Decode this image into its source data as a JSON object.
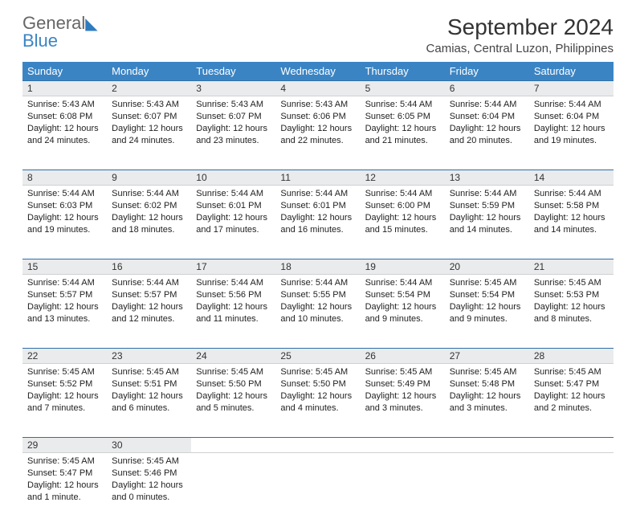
{
  "brand": {
    "part1": "General",
    "part2": "Blue"
  },
  "title": "September 2024",
  "location": "Camias, Central Luzon, Philippines",
  "colors": {
    "header_bg": "#3b84c4",
    "header_text": "#ffffff",
    "daynum_bg": "#e9ebec",
    "row_border": "#2f6fa8",
    "body_text": "#222222",
    "logo_blue": "#3b84c4",
    "logo_gray": "#666666"
  },
  "typography": {
    "title_fontsize": 28,
    "location_fontsize": 15,
    "dayheader_fontsize": 13,
    "daynum_fontsize": 12,
    "cell_fontsize": 11
  },
  "day_headers": [
    "Sunday",
    "Monday",
    "Tuesday",
    "Wednesday",
    "Thursday",
    "Friday",
    "Saturday"
  ],
  "weeks": [
    [
      {
        "day": "1",
        "sunrise": "5:43 AM",
        "sunset": "6:08 PM",
        "daylight": "12 hours and 24 minutes."
      },
      {
        "day": "2",
        "sunrise": "5:43 AM",
        "sunset": "6:07 PM",
        "daylight": "12 hours and 24 minutes."
      },
      {
        "day": "3",
        "sunrise": "5:43 AM",
        "sunset": "6:07 PM",
        "daylight": "12 hours and 23 minutes."
      },
      {
        "day": "4",
        "sunrise": "5:43 AM",
        "sunset": "6:06 PM",
        "daylight": "12 hours and 22 minutes."
      },
      {
        "day": "5",
        "sunrise": "5:44 AM",
        "sunset": "6:05 PM",
        "daylight": "12 hours and 21 minutes."
      },
      {
        "day": "6",
        "sunrise": "5:44 AM",
        "sunset": "6:04 PM",
        "daylight": "12 hours and 20 minutes."
      },
      {
        "day": "7",
        "sunrise": "5:44 AM",
        "sunset": "6:04 PM",
        "daylight": "12 hours and 19 minutes."
      }
    ],
    [
      {
        "day": "8",
        "sunrise": "5:44 AM",
        "sunset": "6:03 PM",
        "daylight": "12 hours and 19 minutes."
      },
      {
        "day": "9",
        "sunrise": "5:44 AM",
        "sunset": "6:02 PM",
        "daylight": "12 hours and 18 minutes."
      },
      {
        "day": "10",
        "sunrise": "5:44 AM",
        "sunset": "6:01 PM",
        "daylight": "12 hours and 17 minutes."
      },
      {
        "day": "11",
        "sunrise": "5:44 AM",
        "sunset": "6:01 PM",
        "daylight": "12 hours and 16 minutes."
      },
      {
        "day": "12",
        "sunrise": "5:44 AM",
        "sunset": "6:00 PM",
        "daylight": "12 hours and 15 minutes."
      },
      {
        "day": "13",
        "sunrise": "5:44 AM",
        "sunset": "5:59 PM",
        "daylight": "12 hours and 14 minutes."
      },
      {
        "day": "14",
        "sunrise": "5:44 AM",
        "sunset": "5:58 PM",
        "daylight": "12 hours and 14 minutes."
      }
    ],
    [
      {
        "day": "15",
        "sunrise": "5:44 AM",
        "sunset": "5:57 PM",
        "daylight": "12 hours and 13 minutes."
      },
      {
        "day": "16",
        "sunrise": "5:44 AM",
        "sunset": "5:57 PM",
        "daylight": "12 hours and 12 minutes."
      },
      {
        "day": "17",
        "sunrise": "5:44 AM",
        "sunset": "5:56 PM",
        "daylight": "12 hours and 11 minutes."
      },
      {
        "day": "18",
        "sunrise": "5:44 AM",
        "sunset": "5:55 PM",
        "daylight": "12 hours and 10 minutes."
      },
      {
        "day": "19",
        "sunrise": "5:44 AM",
        "sunset": "5:54 PM",
        "daylight": "12 hours and 9 minutes."
      },
      {
        "day": "20",
        "sunrise": "5:45 AM",
        "sunset": "5:54 PM",
        "daylight": "12 hours and 9 minutes."
      },
      {
        "day": "21",
        "sunrise": "5:45 AM",
        "sunset": "5:53 PM",
        "daylight": "12 hours and 8 minutes."
      }
    ],
    [
      {
        "day": "22",
        "sunrise": "5:45 AM",
        "sunset": "5:52 PM",
        "daylight": "12 hours and 7 minutes."
      },
      {
        "day": "23",
        "sunrise": "5:45 AM",
        "sunset": "5:51 PM",
        "daylight": "12 hours and 6 minutes."
      },
      {
        "day": "24",
        "sunrise": "5:45 AM",
        "sunset": "5:50 PM",
        "daylight": "12 hours and 5 minutes."
      },
      {
        "day": "25",
        "sunrise": "5:45 AM",
        "sunset": "5:50 PM",
        "daylight": "12 hours and 4 minutes."
      },
      {
        "day": "26",
        "sunrise": "5:45 AM",
        "sunset": "5:49 PM",
        "daylight": "12 hours and 3 minutes."
      },
      {
        "day": "27",
        "sunrise": "5:45 AM",
        "sunset": "5:48 PM",
        "daylight": "12 hours and 3 minutes."
      },
      {
        "day": "28",
        "sunrise": "5:45 AM",
        "sunset": "5:47 PM",
        "daylight": "12 hours and 2 minutes."
      }
    ],
    [
      {
        "day": "29",
        "sunrise": "5:45 AM",
        "sunset": "5:47 PM",
        "daylight": "12 hours and 1 minute."
      },
      {
        "day": "30",
        "sunrise": "5:45 AM",
        "sunset": "5:46 PM",
        "daylight": "12 hours and 0 minutes."
      },
      null,
      null,
      null,
      null,
      null
    ]
  ],
  "labels": {
    "sunrise_prefix": "Sunrise: ",
    "sunset_prefix": "Sunset: ",
    "daylight_prefix": "Daylight: "
  }
}
